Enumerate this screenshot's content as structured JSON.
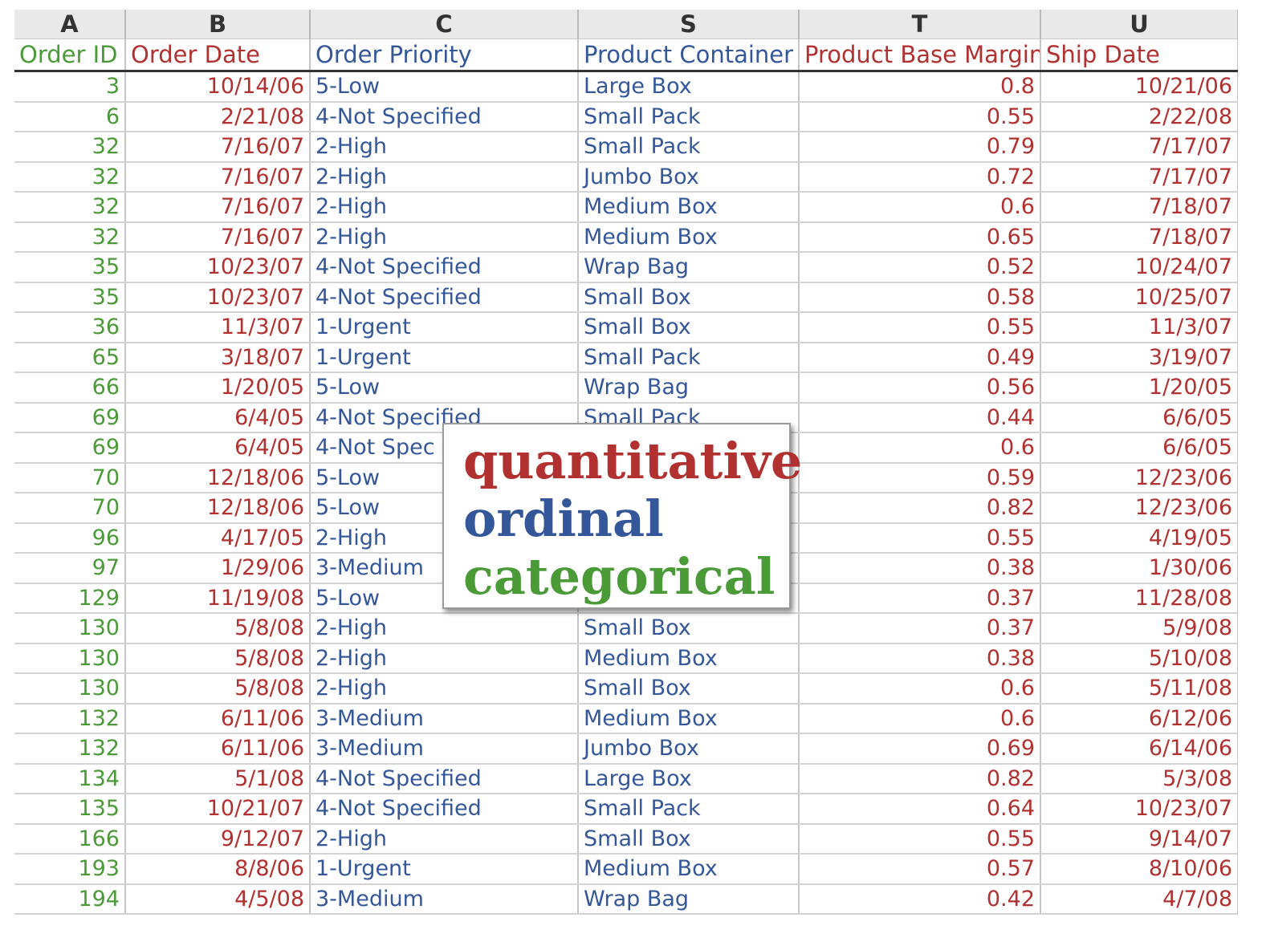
{
  "colors": {
    "quantitative": "#b0312f",
    "ordinal": "#34579a",
    "categorical": "#4a9a38"
  },
  "column_letters": [
    "A",
    "B",
    "C",
    "S",
    "T",
    "U"
  ],
  "headers": [
    "Order ID",
    "Order Date",
    "Order Priority",
    "Product Container",
    "Product Base Margin",
    "Ship Date"
  ],
  "rows": [
    [
      "3",
      "10/14/06",
      "5-Low",
      "Large Box",
      "0.8",
      "10/21/06"
    ],
    [
      "6",
      "2/21/08",
      "4-Not Specified",
      "Small Pack",
      "0.55",
      "2/22/08"
    ],
    [
      "32",
      "7/16/07",
      "2-High",
      "Small Pack",
      "0.79",
      "7/17/07"
    ],
    [
      "32",
      "7/16/07",
      "2-High",
      "Jumbo Box",
      "0.72",
      "7/17/07"
    ],
    [
      "32",
      "7/16/07",
      "2-High",
      "Medium Box",
      "0.6",
      "7/18/07"
    ],
    [
      "32",
      "7/16/07",
      "2-High",
      "Medium Box",
      "0.65",
      "7/18/07"
    ],
    [
      "35",
      "10/23/07",
      "4-Not Specified",
      "Wrap Bag",
      "0.52",
      "10/24/07"
    ],
    [
      "35",
      "10/23/07",
      "4-Not Specified",
      "Small Box",
      "0.58",
      "10/25/07"
    ],
    [
      "36",
      "11/3/07",
      "1-Urgent",
      "Small Box",
      "0.55",
      "11/3/07"
    ],
    [
      "65",
      "3/18/07",
      "1-Urgent",
      "Small Pack",
      "0.49",
      "3/19/07"
    ],
    [
      "66",
      "1/20/05",
      "5-Low",
      "Wrap Bag",
      "0.56",
      "1/20/05"
    ],
    [
      "69",
      "6/4/05",
      "4-Not Specified",
      "Small Pack",
      "0.44",
      "6/6/05"
    ],
    [
      "69",
      "6/4/05",
      "4-Not Spec",
      "",
      "0.6",
      "6/6/05"
    ],
    [
      "70",
      "12/18/06",
      "5-Low",
      "",
      "0.59",
      "12/23/06"
    ],
    [
      "70",
      "12/18/06",
      "5-Low",
      "",
      "0.82",
      "12/23/06"
    ],
    [
      "96",
      "4/17/05",
      "2-High",
      "",
      "0.55",
      "4/19/05"
    ],
    [
      "97",
      "1/29/06",
      "3-Medium",
      "",
      "0.38",
      "1/30/06"
    ],
    [
      "129",
      "11/19/08",
      "5-Low",
      "",
      "0.37",
      "11/28/08"
    ],
    [
      "130",
      "5/8/08",
      "2-High",
      "Small Box",
      "0.37",
      "5/9/08"
    ],
    [
      "130",
      "5/8/08",
      "2-High",
      "Medium Box",
      "0.38",
      "5/10/08"
    ],
    [
      "130",
      "5/8/08",
      "2-High",
      "Small Box",
      "0.6",
      "5/11/08"
    ],
    [
      "132",
      "6/11/06",
      "3-Medium",
      "Medium Box",
      "0.6",
      "6/12/06"
    ],
    [
      "132",
      "6/11/06",
      "3-Medium",
      "Jumbo Box",
      "0.69",
      "6/14/06"
    ],
    [
      "134",
      "5/1/08",
      "4-Not Specified",
      "Large Box",
      "0.82",
      "5/3/08"
    ],
    [
      "135",
      "10/21/07",
      "4-Not Specified",
      "Small Pack",
      "0.64",
      "10/23/07"
    ],
    [
      "166",
      "9/12/07",
      "2-High",
      "Small Box",
      "0.55",
      "9/14/07"
    ],
    [
      "193",
      "8/8/06",
      "1-Urgent",
      "Medium Box",
      "0.57",
      "8/10/06"
    ],
    [
      "194",
      "4/5/08",
      "3-Medium",
      "Wrap Bag",
      "0.42",
      "4/7/08"
    ]
  ],
  "legend": {
    "quantitative": "quantitative",
    "ordinal": "ordinal",
    "categorical": "categorical"
  }
}
